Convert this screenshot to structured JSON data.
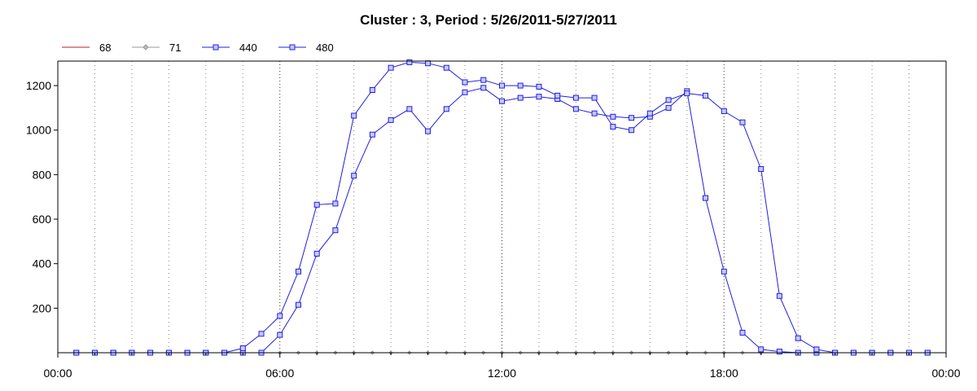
{
  "chart_data": {
    "type": "line",
    "title": "Cluster : 3, Period : 5/26/2011-5/27/2011",
    "xlabel": "",
    "ylabel": "",
    "xlim": [
      "00:00",
      "24:00"
    ],
    "ylim": [
      0,
      1310
    ],
    "x_ticks": [
      "00:00",
      "06:00",
      "12:00",
      "18:00",
      "00:00"
    ],
    "y_ticks": [
      200,
      400,
      600,
      800,
      1000,
      1200
    ],
    "grid": "vertical-dotted",
    "legend_position": "top-left",
    "x": [
      "00:30",
      "01:00",
      "01:30",
      "02:00",
      "02:30",
      "03:00",
      "03:30",
      "04:00",
      "04:30",
      "05:00",
      "05:30",
      "06:00",
      "06:30",
      "07:00",
      "07:30",
      "08:00",
      "08:30",
      "09:00",
      "09:30",
      "10:00",
      "10:30",
      "11:00",
      "11:30",
      "12:00",
      "12:30",
      "13:00",
      "13:30",
      "14:00",
      "14:30",
      "15:00",
      "15:30",
      "16:00",
      "16:30",
      "17:00",
      "17:30",
      "18:00",
      "18:30",
      "19:00",
      "19:30",
      "20:00",
      "20:30",
      "21:00",
      "21:30",
      "22:00",
      "22:30",
      "23:00",
      "23:30"
    ],
    "series": [
      {
        "name": "68",
        "color": "#b22222",
        "marker": "none",
        "values": [
          0,
          0,
          0,
          0,
          0,
          0,
          0,
          0,
          0,
          0,
          0,
          0,
          0,
          0,
          0,
          0,
          0,
          0,
          0,
          0,
          0,
          0,
          0,
          0,
          0,
          0,
          0,
          0,
          0,
          0,
          0,
          0,
          0,
          0,
          0,
          0,
          0,
          0,
          0,
          0,
          0,
          0,
          0,
          0,
          0,
          0,
          0
        ]
      },
      {
        "name": "71",
        "color": "#999999",
        "marker": "diamond",
        "values": [
          0,
          0,
          0,
          0,
          0,
          0,
          0,
          0,
          0,
          0,
          0,
          0,
          0,
          0,
          0,
          0,
          0,
          0,
          0,
          0,
          0,
          0,
          0,
          0,
          0,
          0,
          0,
          0,
          0,
          0,
          0,
          0,
          0,
          0,
          0,
          0,
          0,
          0,
          0,
          0,
          0,
          0,
          0,
          0,
          0,
          0,
          0
        ]
      },
      {
        "name": "440",
        "color": "#1f1fe0",
        "marker": "square",
        "values": [
          0,
          0,
          0,
          0,
          0,
          0,
          0,
          0,
          0,
          0,
          0,
          80,
          215,
          445,
          550,
          795,
          980,
          1045,
          1095,
          995,
          1095,
          1170,
          1190,
          1130,
          1145,
          1150,
          1140,
          1095,
          1075,
          1060,
          1055,
          1060,
          1100,
          1175,
          695,
          365,
          90,
          15,
          5,
          0,
          0,
          0,
          0,
          0,
          0,
          0,
          0
        ]
      },
      {
        "name": "480",
        "color": "#1f1fe0",
        "marker": "square",
        "values": [
          0,
          0,
          0,
          0,
          0,
          0,
          0,
          0,
          0,
          20,
          85,
          165,
          365,
          665,
          670,
          1065,
          1180,
          1280,
          1305,
          1300,
          1280,
          1215,
          1225,
          1200,
          1200,
          1195,
          1155,
          1145,
          1145,
          1015,
          1000,
          1075,
          1135,
          1165,
          1155,
          1085,
          1035,
          825,
          255,
          65,
          15,
          0,
          0,
          0,
          0,
          0,
          0
        ]
      }
    ]
  }
}
